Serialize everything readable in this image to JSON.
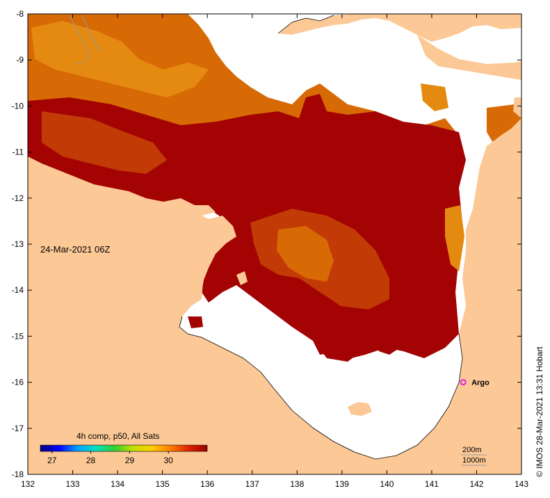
{
  "map": {
    "date_label": "24-Mar-2021 06Z",
    "credit": "© IMOS 28-Mar-2021 13:31 Hobart",
    "lon_ticks": [
      "132",
      "133",
      "134",
      "135",
      "136",
      "137",
      "138",
      "139",
      "140",
      "141",
      "142",
      "143"
    ],
    "lat_ticks": [
      "-8",
      "-9",
      "-10",
      "-11",
      "-12",
      "-13",
      "-14",
      "-15",
      "-16",
      "-17",
      "-18"
    ],
    "lon_range": [
      132,
      143
    ],
    "lat_range": [
      -8,
      -18
    ],
    "markers": [
      {
        "label": "Argo",
        "lon": 141.7,
        "lat": -16.0,
        "color": "#e020e0"
      }
    ],
    "contour_labels": [
      "200m",
      "1000m"
    ],
    "colorbar": {
      "title": "4h comp, p50, All Sats",
      "ticks": [
        "27",
        "28",
        "29",
        "30"
      ],
      "range": [
        26.7,
        31.0
      ],
      "stops": [
        "#00007f",
        "#0000ff",
        "#00a0ff",
        "#00e0c0",
        "#30d030",
        "#c0e000",
        "#ffd000",
        "#ff8000",
        "#e02000",
        "#9a0000"
      ]
    },
    "colors": {
      "land": "#fcc896",
      "no_data": "#ffffff",
      "sst_dark": "#a30303",
      "sst_mid": "#c23a05",
      "sst_orange": "#d86a06",
      "sst_light": "#e58a10"
    }
  }
}
